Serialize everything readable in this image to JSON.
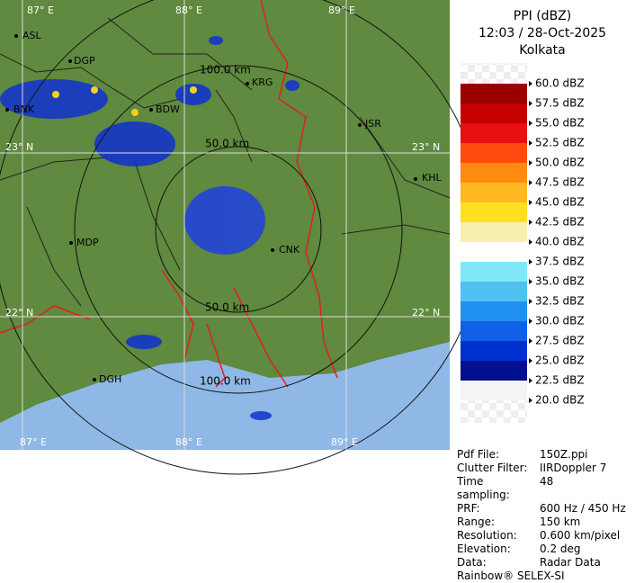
{
  "header": {
    "title": "PPI (dBZ)",
    "time": "12:03 / 28-Oct-2025",
    "site": "Kolkata"
  },
  "map": {
    "grid_labels": [
      "87° E",
      "88° E",
      "89° E",
      "23° N",
      "23° N",
      "22° N",
      "22° N",
      "87° E",
      "88° E",
      "89° E"
    ],
    "ring_labels": [
      "100.0 km",
      "50.0 km",
      "50.0 km",
      "100.0 km"
    ],
    "cities": [
      "ASL",
      "DGP",
      "KRG",
      "BNK",
      "BDW",
      "JSR",
      "KHL",
      "MDP",
      "CNK",
      "DGH"
    ]
  },
  "legend": [
    {
      "label": "60.0 dBZ",
      "color": "#f4f4f4"
    },
    {
      "label": "57.5 dBZ",
      "color": "#9a0000"
    },
    {
      "label": "55.0 dBZ",
      "color": "#c40000"
    },
    {
      "label": "52.5 dBZ",
      "color": "#e81010"
    },
    {
      "label": "50.0 dBZ",
      "color": "#ff4a10"
    },
    {
      "label": "47.5 dBZ",
      "color": "#ff8a10"
    },
    {
      "label": "45.0 dBZ",
      "color": "#ffb820"
    },
    {
      "label": "42.5 dBZ",
      "color": "#ffe020"
    },
    {
      "label": "40.0 dBZ",
      "color": "#f8f0b0"
    },
    {
      "label": "37.5 dBZ",
      "color": "#ffffff"
    },
    {
      "label": "35.0 dBZ",
      "color": "#80e8f8"
    },
    {
      "label": "32.5 dBZ",
      "color": "#50c0f0"
    },
    {
      "label": "30.0 dBZ",
      "color": "#2090f0"
    },
    {
      "label": "27.5 dBZ",
      "color": "#1060e8"
    },
    {
      "label": "25.0 dBZ",
      "color": "#0030d0"
    },
    {
      "label": "22.5 dBZ",
      "color": "#001090"
    },
    {
      "label": "20.0 dBZ",
      "color": "#f4f4f4"
    }
  ],
  "info": [
    [
      "Pdf File:",
      "150Z.ppi"
    ],
    [
      "Clutter Filter:",
      "IIRDoppler 7"
    ],
    [
      "Time sampling:",
      "48"
    ],
    [
      "PRF:",
      "600 Hz / 450 Hz"
    ],
    [
      "Range:",
      "150 km"
    ],
    [
      "Resolution:",
      "0.600 km/pixel"
    ],
    [
      "Elevation:",
      "0.2 deg"
    ],
    [
      "Data:",
      "Radar Data"
    ]
  ],
  "footer": "Rainbow® SELEX-SI"
}
